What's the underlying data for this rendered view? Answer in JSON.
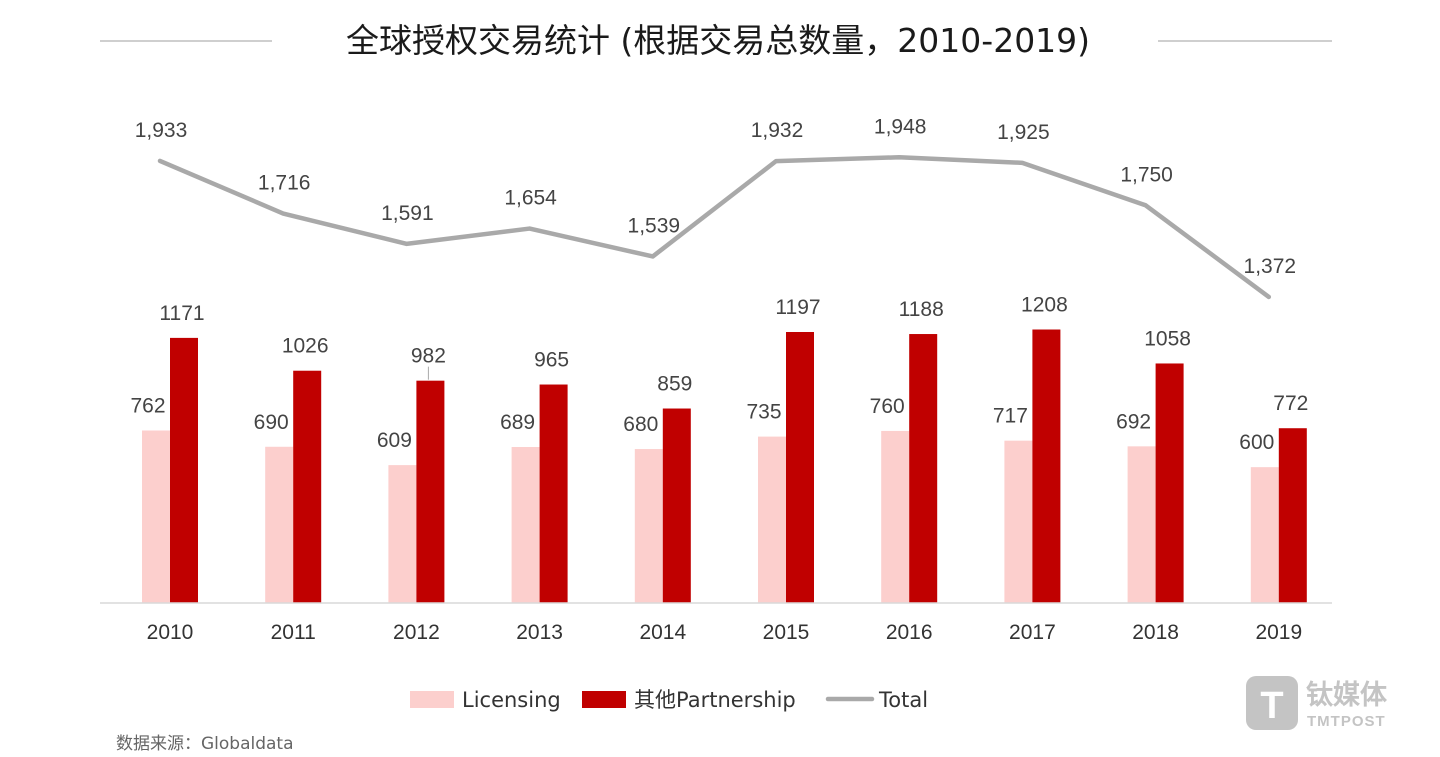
{
  "colors": {
    "licensing": "#fccfcd",
    "partnership": "#c00000",
    "total": "#a9a9a9",
    "axis": "#d9d9d9",
    "title_rule": "#bfbfbf",
    "watermark": "#c4c4c4"
  },
  "chart_data": {
    "type": "bar",
    "title": "全球授权交易统计 (根据交易总数量，2010-2019)",
    "categories": [
      "2010",
      "2011",
      "2012",
      "2013",
      "2014",
      "2015",
      "2016",
      "2017",
      "2018",
      "2019"
    ],
    "series": [
      {
        "name": "Licensing",
        "kind": "bar",
        "values": [
          762,
          690,
          609,
          689,
          680,
          735,
          760,
          717,
          692,
          600
        ],
        "labels": [
          "762",
          "690",
          "609",
          "689",
          "680",
          "735",
          "760",
          "717",
          "692",
          "600"
        ]
      },
      {
        "name": "其他Partnership",
        "kind": "bar",
        "values": [
          1171,
          1026,
          982,
          965,
          859,
          1197,
          1188,
          1208,
          1058,
          772
        ],
        "labels": [
          "1171",
          "1026",
          "982",
          "965",
          "859",
          "1197",
          "1188",
          "1208",
          "1058",
          "772"
        ]
      },
      {
        "name": "Total",
        "kind": "line",
        "values": [
          1933,
          1716,
          1591,
          1654,
          1539,
          1932,
          1948,
          1925,
          1750,
          1372
        ],
        "labels": [
          "1,933",
          "1,716",
          "1,591",
          "1,654",
          "1,539",
          "1,932",
          "1,948",
          "1,925",
          "1,750",
          "1,372"
        ]
      }
    ],
    "legend_position": "bottom",
    "grid": false
  },
  "source": "数据来源：Globaldata",
  "watermark": {
    "logo_glyph": "T",
    "name_cn": "钛媒体",
    "name_en": "TMTPOST"
  }
}
